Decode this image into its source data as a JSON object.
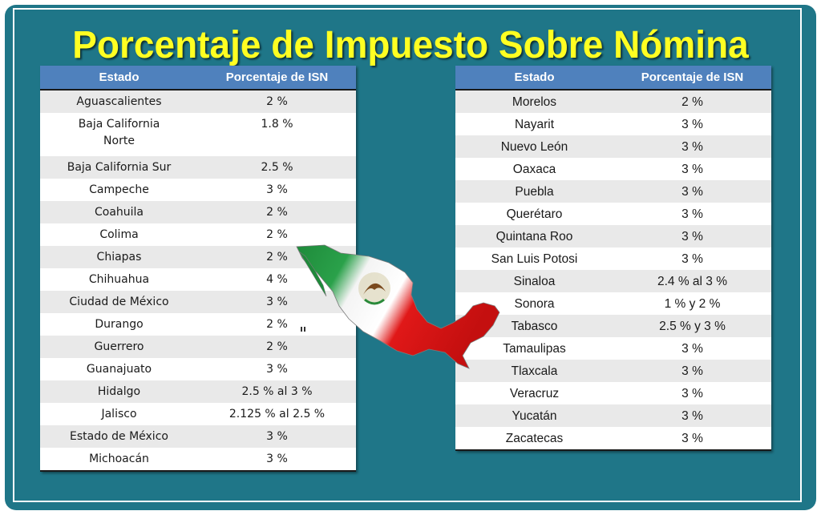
{
  "title": "Porcentaje de Impuesto Sobre Nómina",
  "colors": {
    "background": "#1f7688",
    "title": "#ffff22",
    "header": "#4f81bd",
    "row_alt": "#e9e9e9"
  },
  "left_table": {
    "headers": [
      "Estado",
      "Porcentaje de ISN"
    ],
    "rows": [
      {
        "state": "Aguascalientes",
        "rate": "2 %"
      },
      {
        "state": "Baja California Norte",
        "rate": "1.8 %"
      },
      {
        "state": "Baja California Sur",
        "rate": "2.5 %"
      },
      {
        "state": "Campeche",
        "rate": "3 %"
      },
      {
        "state": "Coahuila",
        "rate": "2 %"
      },
      {
        "state": "Colima",
        "rate": "2 %"
      },
      {
        "state": "Chiapas",
        "rate": "2 %"
      },
      {
        "state": "Chihuahua",
        "rate": "4 %"
      },
      {
        "state": "Ciudad de México",
        "rate": "3 %"
      },
      {
        "state": "Durango",
        "rate": "2 %"
      },
      {
        "state": "Guerrero",
        "rate": "2 %"
      },
      {
        "state": "Guanajuato",
        "rate": "3 %"
      },
      {
        "state": "Hidalgo",
        "rate": "2.5 % al 3 %"
      },
      {
        "state": "Jalisco",
        "rate": "2.125 % al 2.5 %"
      },
      {
        "state": "Estado de México",
        "rate": "3 %"
      },
      {
        "state": "Michoacán",
        "rate": "3 %"
      }
    ]
  },
  "right_table": {
    "headers": [
      "Estado",
      "Porcentaje de ISN"
    ],
    "rows": [
      {
        "state": "Morelos",
        "rate": "2 %"
      },
      {
        "state": "Nayarit",
        "rate": "3 %"
      },
      {
        "state": "Nuevo León",
        "rate": "3 %"
      },
      {
        "state": "Oaxaca",
        "rate": "3 %"
      },
      {
        "state": "Puebla",
        "rate": "3 %"
      },
      {
        "state": "Querétaro",
        "rate": "3 %"
      },
      {
        "state": "Quintana Roo",
        "rate": "3 %"
      },
      {
        "state": "San Luis Potosi",
        "rate": "3 %"
      },
      {
        "state": "Sinaloa",
        "rate": "2.4 % al 3 %"
      },
      {
        "state": "Sonora",
        "rate": "1 % y 2 %"
      },
      {
        "state": "Tabasco",
        "rate": "2.5 % y 3 %"
      },
      {
        "state": "Tamaulipas",
        "rate": "3 %"
      },
      {
        "state": "Tlaxcala",
        "rate": "3 %"
      },
      {
        "state": "Veracruz",
        "rate": "3 %"
      },
      {
        "state": "Yucatán",
        "rate": "3 %"
      },
      {
        "state": "Zacatecas",
        "rate": "3 %"
      }
    ]
  },
  "map_icon": "mexico-flag-map-icon"
}
